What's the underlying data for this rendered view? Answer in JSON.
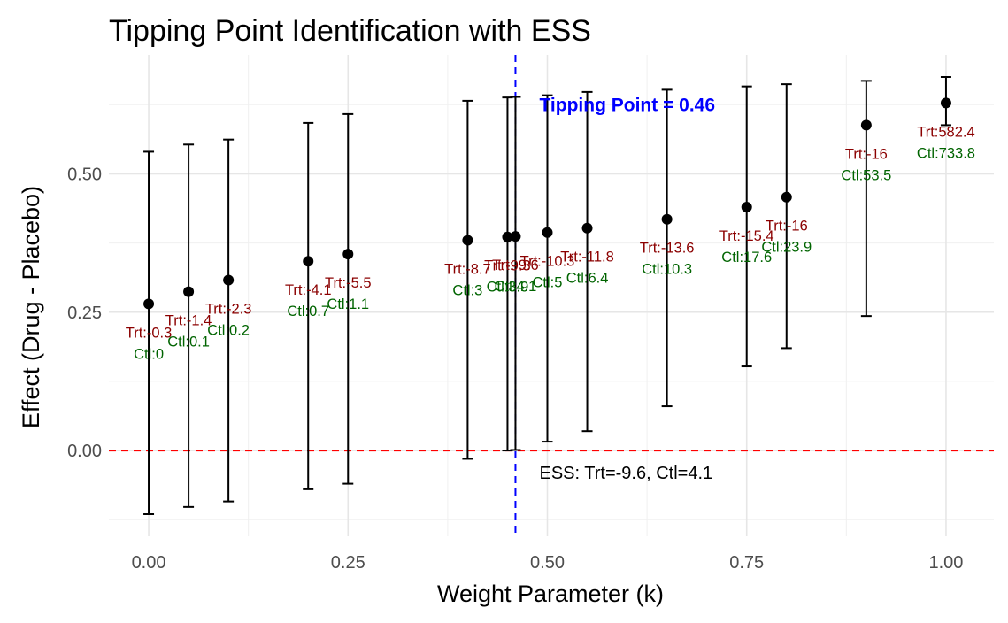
{
  "chart_data": {
    "type": "scatter",
    "title": "Tipping Point Identification with ESS",
    "xlabel": "Weight Parameter (k)",
    "ylabel": "Effect (Drug - Placebo)",
    "xlim": [
      -0.05,
      1.06
    ],
    "ylim": [
      -0.155,
      0.715
    ],
    "x_ticks": [
      0.0,
      0.25,
      0.5,
      0.75,
      1.0
    ],
    "x_tick_labels": [
      "0.00",
      "0.25",
      "0.50",
      "0.75",
      "1.00"
    ],
    "y_ticks": [
      0.0,
      0.25,
      0.5
    ],
    "y_tick_labels": [
      "0.00",
      "0.25",
      "0.50"
    ],
    "grid": true,
    "legend": "none",
    "points": [
      {
        "x": 0.0,
        "y": 0.265,
        "lower": -0.115,
        "upper": 0.54,
        "trt": "Trt:-0.3",
        "ctl": "Ctl:0"
      },
      {
        "x": 0.05,
        "y": 0.287,
        "lower": -0.102,
        "upper": 0.553,
        "trt": "Trt:-1.4",
        "ctl": "Ctl:0.1"
      },
      {
        "x": 0.1,
        "y": 0.308,
        "lower": -0.092,
        "upper": 0.562,
        "trt": "Trt:-2.3",
        "ctl": "Ctl:0.2"
      },
      {
        "x": 0.2,
        "y": 0.342,
        "lower": -0.07,
        "upper": 0.592,
        "trt": "Trt:-4.1",
        "ctl": "Ctl:0.7"
      },
      {
        "x": 0.25,
        "y": 0.355,
        "lower": -0.06,
        "upper": 0.608,
        "trt": "Trt:-5.5",
        "ctl": "Ctl:1.1"
      },
      {
        "x": 0.4,
        "y": 0.38,
        "lower": -0.015,
        "upper": 0.632,
        "trt": "Trt:-8.7",
        "ctl": "Ctl:3"
      },
      {
        "x": 0.45,
        "y": 0.386,
        "lower": 0.0,
        "upper": 0.638,
        "trt": "Trt:-9.3",
        "ctl": "Ctl:3.9"
      },
      {
        "x": 0.46,
        "y": 0.387,
        "lower": 0.001,
        "upper": 0.639,
        "trt": "Trt:-9.6",
        "ctl": "Ctl:4.1"
      },
      {
        "x": 0.5,
        "y": 0.394,
        "lower": 0.016,
        "upper": 0.642,
        "trt": "Trt:-10.3",
        "ctl": "Ctl:5"
      },
      {
        "x": 0.55,
        "y": 0.402,
        "lower": 0.035,
        "upper": 0.648,
        "trt": "Trt:-11.8",
        "ctl": "Ctl:6.4"
      },
      {
        "x": 0.65,
        "y": 0.418,
        "lower": 0.08,
        "upper": 0.652,
        "trt": "Trt:-13.6",
        "ctl": "Ctl:10.3"
      },
      {
        "x": 0.75,
        "y": 0.44,
        "lower": 0.152,
        "upper": 0.658,
        "trt": "Trt:-15.4",
        "ctl": "Ctl:17.6"
      },
      {
        "x": 0.8,
        "y": 0.458,
        "lower": 0.185,
        "upper": 0.662,
        "trt": "Trt:-16",
        "ctl": "Ctl:23.9"
      },
      {
        "x": 0.9,
        "y": 0.588,
        "lower": 0.243,
        "upper": 0.668,
        "trt": "Trt:-16",
        "ctl": "Ctl:53.5"
      },
      {
        "x": 1.0,
        "y": 0.628,
        "lower": 0.588,
        "upper": 0.675,
        "trt": "Trt:582.4",
        "ctl": "Ctl:733.8"
      }
    ],
    "reference_lines": [
      {
        "axis": "y",
        "value": 0.0,
        "color": "#ff0000",
        "style": "dashed"
      },
      {
        "axis": "x",
        "value": 0.46,
        "color": "#0000ff",
        "style": "dashed"
      }
    ],
    "annotations": [
      {
        "text": "Tipping Point = 0.46",
        "x": 0.49,
        "y": 0.625,
        "color": "#0000ff",
        "bold": true
      },
      {
        "text": "ESS: Trt=-9.6, Ctl=4.1",
        "x": 0.49,
        "y": -0.04,
        "color": "#000000",
        "bold": false
      }
    ],
    "colors": {
      "points": "#000000",
      "trt_label": "#8b0000",
      "ctl_label": "#006400"
    }
  }
}
